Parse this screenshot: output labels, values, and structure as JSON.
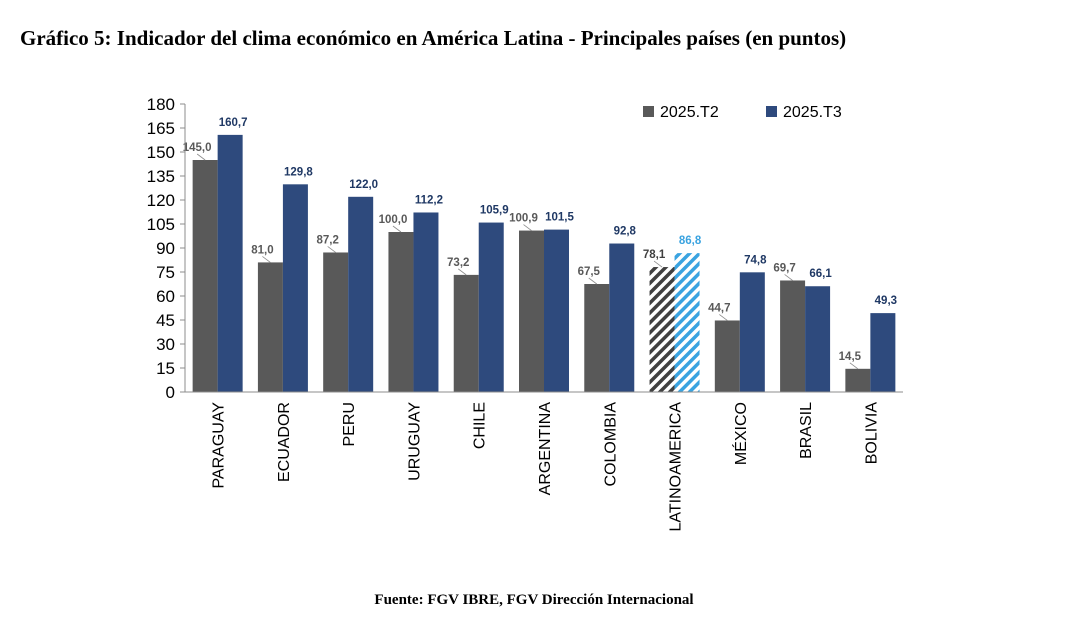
{
  "title": "Gráfico 5: Indicador del clima económico en América Latina - Principales países (en puntos)",
  "source": "Fuente: FGV IBRE, FGV Dirección Internacional",
  "chart_data": {
    "type": "bar",
    "title": "Gráfico 5: Indicador del clima económico en América Latina - Principales países (en puntos)",
    "xlabel": "",
    "ylabel": "",
    "ylim": [
      0,
      180
    ],
    "yticks": [
      0,
      15,
      30,
      45,
      60,
      75,
      90,
      105,
      120,
      135,
      150,
      165,
      180
    ],
    "legend_position": "top-right",
    "categories": [
      "PARAGUAY",
      "ECUADOR",
      "PERU",
      "URUGUAY",
      "CHILE",
      "ARGENTINA",
      "COLOMBIA",
      "LATINOAMERICA",
      "MÉXICO",
      "BRASIL",
      "BOLIVIA"
    ],
    "highlight_category": "LATINOAMERICA",
    "series": [
      {
        "name": "2025.T2",
        "color": "#595959",
        "highlight_color": "#404040",
        "label_color": "#595959",
        "values": [
          145.0,
          81.0,
          87.2,
          100.0,
          73.2,
          100.9,
          67.5,
          78.1,
          44.7,
          69.7,
          14.5
        ],
        "labels": [
          "145,0",
          "81,0",
          "87,2",
          "100,0",
          "73,2",
          "100,9",
          "67,5",
          "78,1",
          "44,7",
          "69,7",
          "14,5"
        ]
      },
      {
        "name": "2025.T3",
        "color": "#2e4a7d",
        "highlight_color": "#3aa3e0",
        "label_color": "#1f3864",
        "highlight_label_color": "#3aa3e0",
        "values": [
          160.7,
          129.8,
          122.0,
          112.2,
          105.9,
          101.5,
          92.8,
          86.8,
          74.8,
          66.1,
          49.3
        ],
        "labels": [
          "160,7",
          "129,8",
          "122,0",
          "112,2",
          "105,9",
          "101,5",
          "92,8",
          "86,8",
          "74,8",
          "66,1",
          "49,3"
        ]
      }
    ]
  }
}
